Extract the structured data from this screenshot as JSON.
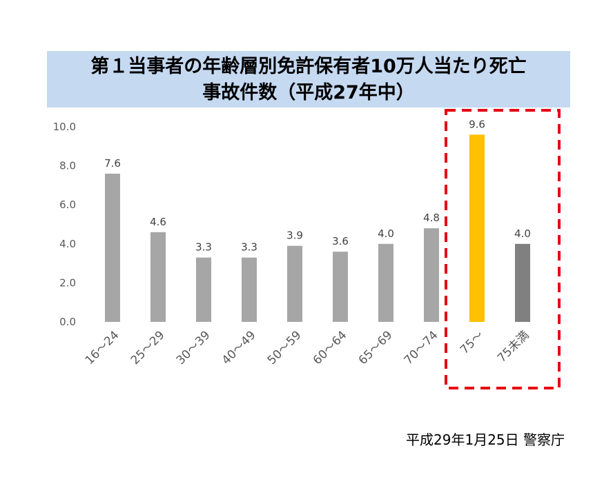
{
  "chart_data": {
    "type": "bar",
    "title_lines": [
      "第１当事者の年齢層別免許保有者10万人当たり死亡",
      "事故件数（平成27年中）"
    ],
    "categories": [
      "16～24",
      "25～29",
      "30～39",
      "40～49",
      "50～59",
      "60～64",
      "65～69",
      "70～74",
      "75～",
      "75未満"
    ],
    "values": [
      7.6,
      4.6,
      3.3,
      3.3,
      3.9,
      3.6,
      4.0,
      4.8,
      9.6,
      4.0
    ],
    "data_labels": [
      "7.6",
      "4.6",
      "3.3",
      "3.3",
      "3.9",
      "3.6",
      "4.0",
      "4.8",
      "9.6",
      "4.0"
    ],
    "bar_colors": [
      "#a6a6a6",
      "#a6a6a6",
      "#a6a6a6",
      "#a6a6a6",
      "#a6a6a6",
      "#a6a6a6",
      "#a6a6a6",
      "#a6a6a6",
      "#ffc000",
      "#808080"
    ],
    "yticks": [
      "0.0",
      "2.0",
      "4.0",
      "6.0",
      "8.0",
      "10.0"
    ],
    "ylim": [
      0,
      10
    ],
    "grid": false,
    "highlight_categories": [
      "75～",
      "75未満"
    ],
    "highlight_color": "#e60012"
  },
  "source": "平成29年1月25日 警察庁"
}
